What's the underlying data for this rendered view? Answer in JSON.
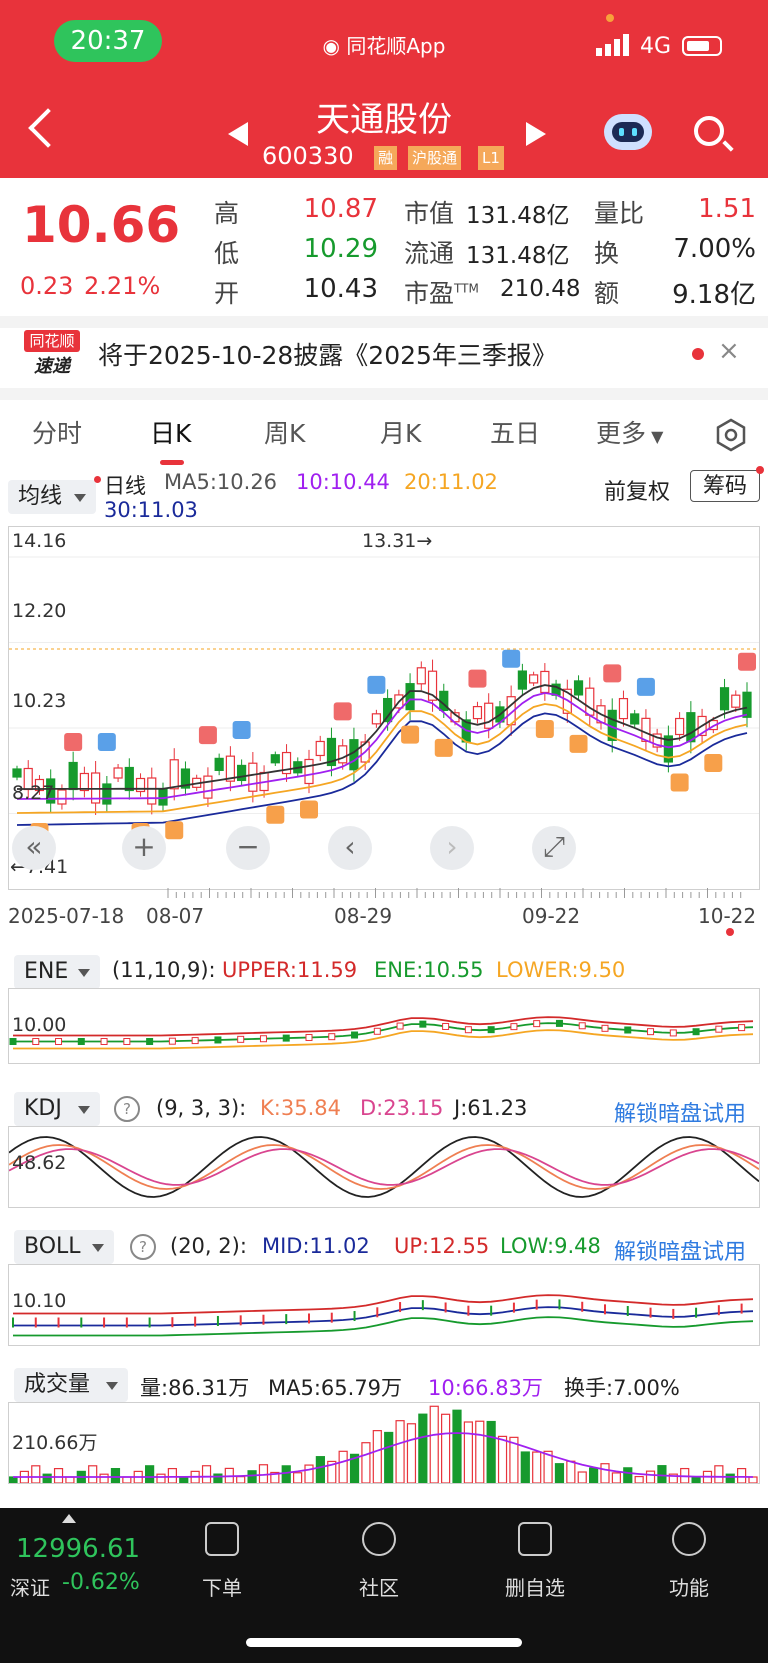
{
  "status": {
    "time": "20:37",
    "app_name": "同花顺App",
    "network": "4G"
  },
  "header": {
    "title": "天通股份",
    "code": "600330",
    "tags": [
      "融",
      "沪股通",
      "L1"
    ]
  },
  "quote": {
    "price": "10.66",
    "change": "0.23",
    "change_pct": "2.21%",
    "rows": [
      {
        "l1": "高",
        "v1": "10.87",
        "l2": "市值",
        "v2": "131.48亿",
        "l3": "量比",
        "v3": "1.51"
      },
      {
        "l1": "低",
        "v1": "10.29",
        "l2": "流通",
        "v2": "131.48亿",
        "l3": "换",
        "v3": "7.00%"
      },
      {
        "l1": "开",
        "v1": "10.43",
        "l2": "市盈",
        "l2_sup": "TTM",
        "v2": "210.48",
        "l3": "额",
        "v3": "9.18亿"
      }
    ]
  },
  "notice": {
    "logo_top": "同花顺",
    "logo_bottom": "速递",
    "text": "将于2025-10-28披露《2025年三季报》",
    "close": "×"
  },
  "tabs": [
    "分时",
    "日K",
    "周K",
    "月K",
    "五日",
    "更多"
  ],
  "kline": {
    "indicator_select": "均线",
    "legend": {
      "period": "日线",
      "ma5": "MA5:10.26",
      "ma10": "10:10.44",
      "ma20": "20:11.02",
      "ma30": "30:11.03"
    },
    "adjust": "前复权",
    "chip_button": "筹码",
    "y_labels": [
      "14.16",
      "12.20",
      "10.23",
      "8.27"
    ],
    "high_marker": "13.31→",
    "low_marker": "←7.41",
    "x_labels": [
      "2025-07-18",
      "08-07",
      "08-29",
      "09-22",
      "10-22"
    ],
    "controls": [
      "+",
      "−",
      "‹",
      "›",
      "⤢"
    ]
  },
  "ene": {
    "name": "ENE",
    "params": "(11,10,9):",
    "upper": "UPPER:11.59",
    "ene": "ENE:10.55",
    "lower": "LOWER:9.50",
    "y_label": "10.00"
  },
  "kdj": {
    "name": "KDJ",
    "params": "(9, 3, 3):",
    "k": "K:35.84",
    "d": "D:23.15",
    "j": "J:61.23",
    "y_label": "48.62",
    "unlock": "解锁暗盘试用"
  },
  "boll": {
    "name": "BOLL",
    "params": "(20, 2):",
    "mid": "MID:11.02",
    "up": "UP:12.55",
    "low": "LOW:9.48",
    "y_label": "10.10",
    "unlock": "解锁暗盘试用"
  },
  "volume": {
    "name": "成交量",
    "vol": "量:86.31万",
    "ma5": "MA5:65.79万",
    "ma10": "10:66.83万",
    "turnover": "换手:7.00%",
    "y_label": "210.66万"
  },
  "bottom": {
    "index_value": "12996.61",
    "index_name": "深证",
    "index_change": "-0.62%",
    "nav": [
      "下单",
      "社区",
      "删自选",
      "功能"
    ]
  },
  "colors": {
    "red": "#e8333b",
    "green": "#169a2d",
    "ma5": "#333333",
    "ma10": "#a020f0",
    "ma20": "#f5a623",
    "ma30": "#1a2a9a"
  }
}
